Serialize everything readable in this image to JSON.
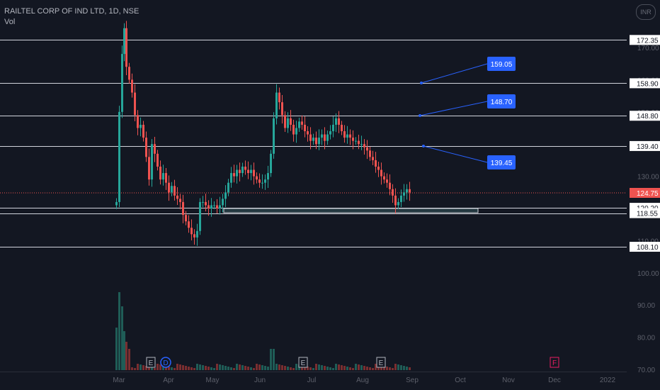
{
  "header": {
    "title": "RAILTEL CORP OF IND LTD, 1D, NSE",
    "volume_label": "Vol"
  },
  "currency_badge": "INR",
  "colors": {
    "up": "#26a69a",
    "down": "#ef5350",
    "callout": "#2962ff",
    "background": "#131722",
    "earnings_marker": "#b2b5be",
    "dividend_marker": "#2962ff",
    "future_marker": "#e91e63"
  },
  "chart_data": {
    "type": "candlestick",
    "ylim": [
      70,
      178
    ],
    "x_ticks": [
      "Mar",
      "Apr",
      "May",
      "Jun",
      "Jul",
      "Aug",
      "Sep",
      "Oct",
      "Nov",
      "Dec",
      "2022"
    ],
    "y_ticks": [
      "170.00",
      "160.00",
      "150.00",
      "140.00",
      "130.00",
      "120.00",
      "110.00",
      "100.00",
      "90.00",
      "80.00",
      "70.00"
    ],
    "current_price": "124.75",
    "horizontal_levels": [
      "172.35",
      "158.90",
      "148.80",
      "139.40",
      "120.20",
      "118.55",
      "108.10"
    ],
    "callouts": [
      "159.05",
      "148.70",
      "139.45"
    ],
    "events": [
      {
        "label": "E",
        "kind": "earnings"
      },
      {
        "label": "D",
        "kind": "dividend"
      },
      {
        "label": "E",
        "kind": "earnings"
      },
      {
        "label": "E",
        "kind": "earnings"
      },
      {
        "label": "F",
        "kind": "future"
      }
    ]
  }
}
